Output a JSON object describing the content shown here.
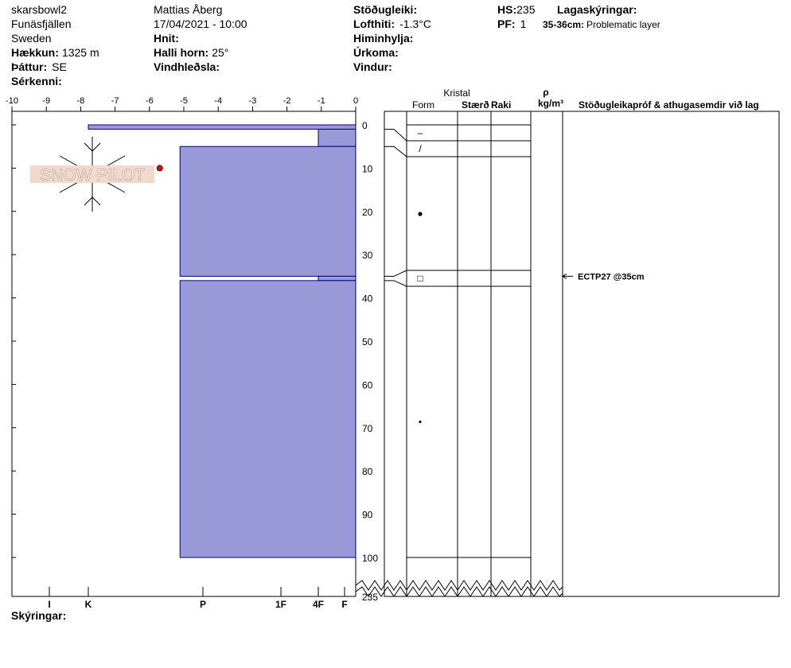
{
  "header": {
    "location": "skarsbowl2",
    "area": "Funäsfjällen",
    "country": "Sweden",
    "elevation": {
      "label": "Hækkun:",
      "value": "1325 m"
    },
    "aspect": {
      "label": "Þáttur:",
      "value": "SE"
    },
    "features": {
      "label": "Sérkenni:"
    },
    "observer": "Mattias Åberg",
    "datetime": "17/04/2021 - 10:00",
    "coords": {
      "label": "Hnit:"
    },
    "slope": {
      "label": "Halli horn:",
      "value": "25°"
    },
    "wind_loading": {
      "label": "Vindhleðsla:"
    },
    "stability": {
      "label": "Stöðugleiki:"
    },
    "air_temp": {
      "label": "Lofthiti:",
      "value": "-1.3°C"
    },
    "sky": {
      "label": "Himinhylja:"
    },
    "precip": {
      "label": "Úrkoma:"
    },
    "wind": {
      "label": "Vindur:"
    },
    "hs": {
      "label": "HS:",
      "value": "235"
    },
    "pf": {
      "label": "PF:",
      "value": "1"
    },
    "layer_notes": {
      "label": "Lagaskýringar:",
      "items": [
        {
          "range": "35-36cm:",
          "text": "Problematic layer"
        }
      ]
    }
  },
  "logo": "SNOW PILOT",
  "chart_data": {
    "type": "snow-profile",
    "xlim": [
      -10,
      0
    ],
    "xticks": [
      -10,
      -9,
      -8,
      -7,
      -6,
      -5,
      -4,
      -3,
      -2,
      -1,
      0
    ],
    "ylim": [
      0,
      100
    ],
    "yticks": [
      0,
      10,
      20,
      30,
      40,
      50,
      60,
      70,
      80,
      90,
      100
    ],
    "depth_bottom": 235,
    "hardness_ticks": [
      {
        "value": 6,
        "label": "I"
      },
      {
        "value": 5,
        "label": "K"
      },
      {
        "value": 4,
        "label": "P"
      },
      {
        "value": 3,
        "label": "1F"
      },
      {
        "value": 2,
        "label": "4F"
      },
      {
        "value": 1,
        "label": "F"
      }
    ],
    "bar_color": "#9999d8",
    "temp_color": "#cc1111",
    "temps": {
      "depth": [
        10
      ],
      "values": [
        -5.7
      ]
    },
    "layers": [
      {
        "top": 0,
        "bottom": 1,
        "hardness": 5,
        "form": "–"
      },
      {
        "top": 1,
        "bottom": 5,
        "hardness": 2,
        "form": "/"
      },
      {
        "top": 5,
        "bottom": 35,
        "hardness": 4.2,
        "form": "●"
      },
      {
        "top": 35,
        "bottom": 36,
        "hardness": 2,
        "form": "□"
      },
      {
        "top": 36,
        "bottom": 100,
        "hardness": 4.2,
        "form": "•"
      }
    ],
    "columns": {
      "crystal": "Kristal",
      "form": "Form",
      "size": "Stærð",
      "moisture": "Raki",
      "rho": "ρ",
      "density_unit": "kg/m³",
      "comments": "Stöðugleikapróf & athugasemdir við lag"
    },
    "tests": [
      {
        "depth": 35,
        "label": "ECTP27 @35cm"
      }
    ]
  },
  "footer": {
    "notes_label": "Skýringar:"
  }
}
